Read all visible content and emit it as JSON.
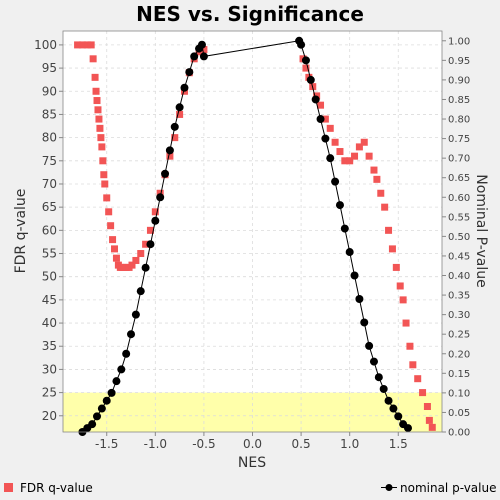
{
  "chart_data": {
    "type": "scatter",
    "title": "NES vs. Significance",
    "xlabel": "NES",
    "ylabel": "FDR q-value",
    "y2label": "Nominal P-value",
    "xlim": [
      -1.95,
      1.95
    ],
    "ylim": [
      16.5,
      103
    ],
    "y2lim": [
      0.0,
      1.025
    ],
    "x_ticks": [
      "-1.5",
      "-1.0",
      "-0.5",
      "0.0",
      "0.5",
      "1.0",
      "1.5"
    ],
    "y_ticks": [
      "20",
      "25",
      "30",
      "35",
      "40",
      "45",
      "50",
      "55",
      "60",
      "65",
      "70",
      "75",
      "80",
      "85",
      "90",
      "95",
      "100"
    ],
    "y2_ticks": [
      "0.00",
      "0.05",
      "0.10",
      "0.15",
      "0.20",
      "0.25",
      "0.30",
      "0.35",
      "0.40",
      "0.45",
      "0.50",
      "0.55",
      "0.60",
      "0.65",
      "0.70",
      "0.75",
      "0.80",
      "0.85",
      "0.90",
      "0.95",
      "1.00"
    ],
    "grid": true,
    "highlight_band": {
      "y_from": 16.5,
      "y_to": 25,
      "color": "#ffffaa"
    },
    "legend_position": "bottom",
    "series": [
      {
        "name": "FDR q-value",
        "color": "#f25555",
        "marker": "square",
        "axis": "left",
        "x": [
          -1.8,
          -1.75,
          -1.7,
          -1.66,
          -1.64,
          -1.62,
          -1.61,
          -1.6,
          -1.59,
          -1.58,
          -1.57,
          -1.56,
          -1.55,
          -1.54,
          -1.53,
          -1.52,
          -1.5,
          -1.48,
          -1.46,
          -1.44,
          -1.42,
          -1.4,
          -1.38,
          -1.36,
          -1.34,
          -1.32,
          -1.3,
          -1.27,
          -1.24,
          -1.2,
          -1.15,
          -1.1,
          -1.05,
          -1.0,
          -0.95,
          -0.9,
          -0.85,
          -0.8,
          -0.75,
          -0.7,
          -0.65,
          -0.6,
          -0.55,
          -0.52,
          -0.5,
          0.52,
          0.55,
          0.58,
          0.62,
          0.66,
          0.7,
          0.75,
          0.8,
          0.85,
          0.9,
          0.95,
          1.0,
          1.05,
          1.1,
          1.15,
          1.2,
          1.25,
          1.28,
          1.32,
          1.36,
          1.4,
          1.44,
          1.48,
          1.52,
          1.55,
          1.58,
          1.62,
          1.65,
          1.7,
          1.75,
          1.8,
          1.82,
          1.85
        ],
        "y": [
          100,
          100,
          100,
          100,
          97,
          93,
          90,
          88,
          86,
          84,
          82,
          80,
          78,
          75,
          72,
          70,
          67,
          64,
          61,
          58,
          56,
          54,
          52.5,
          52,
          52,
          52,
          52,
          52,
          52.5,
          53.5,
          55,
          57,
          60,
          64,
          68,
          72,
          76,
          80,
          85,
          90,
          94,
          97,
          98.5,
          99,
          99,
          97,
          95,
          93,
          91,
          89,
          87,
          84,
          82,
          79,
          77,
          75,
          75,
          76,
          78,
          79,
          76,
          73,
          71,
          68,
          65,
          60,
          56,
          52,
          48,
          45,
          40,
          35,
          31,
          28,
          25,
          22,
          19,
          17.5
        ]
      },
      {
        "name": "nominal p-value",
        "color": "#000000",
        "marker": "circle",
        "axis": "right",
        "x": [
          -1.75,
          -1.7,
          -1.65,
          -1.6,
          -1.55,
          -1.5,
          -1.45,
          -1.4,
          -1.35,
          -1.3,
          -1.25,
          -1.2,
          -1.15,
          -1.1,
          -1.05,
          -1.0,
          -0.95,
          -0.9,
          -0.85,
          -0.8,
          -0.75,
          -0.7,
          -0.65,
          -0.6,
          -0.55,
          -0.52,
          -0.5,
          0.48,
          0.5,
          0.55,
          0.6,
          0.65,
          0.7,
          0.75,
          0.8,
          0.85,
          0.9,
          0.95,
          1.0,
          1.05,
          1.1,
          1.15,
          1.2,
          1.25,
          1.3,
          1.35,
          1.4,
          1.45,
          1.5,
          1.55,
          1.6
        ],
        "y": [
          0.0,
          0.01,
          0.02,
          0.04,
          0.06,
          0.08,
          0.1,
          0.13,
          0.16,
          0.2,
          0.25,
          0.3,
          0.36,
          0.42,
          0.48,
          0.54,
          0.6,
          0.66,
          0.72,
          0.78,
          0.83,
          0.88,
          0.92,
          0.96,
          0.98,
          0.99,
          0.96,
          1.0,
          0.99,
          0.95,
          0.9,
          0.85,
          0.8,
          0.75,
          0.7,
          0.64,
          0.58,
          0.52,
          0.46,
          0.4,
          0.34,
          0.28,
          0.22,
          0.18,
          0.14,
          0.11,
          0.08,
          0.06,
          0.04,
          0.02,
          0.01
        ]
      }
    ]
  }
}
